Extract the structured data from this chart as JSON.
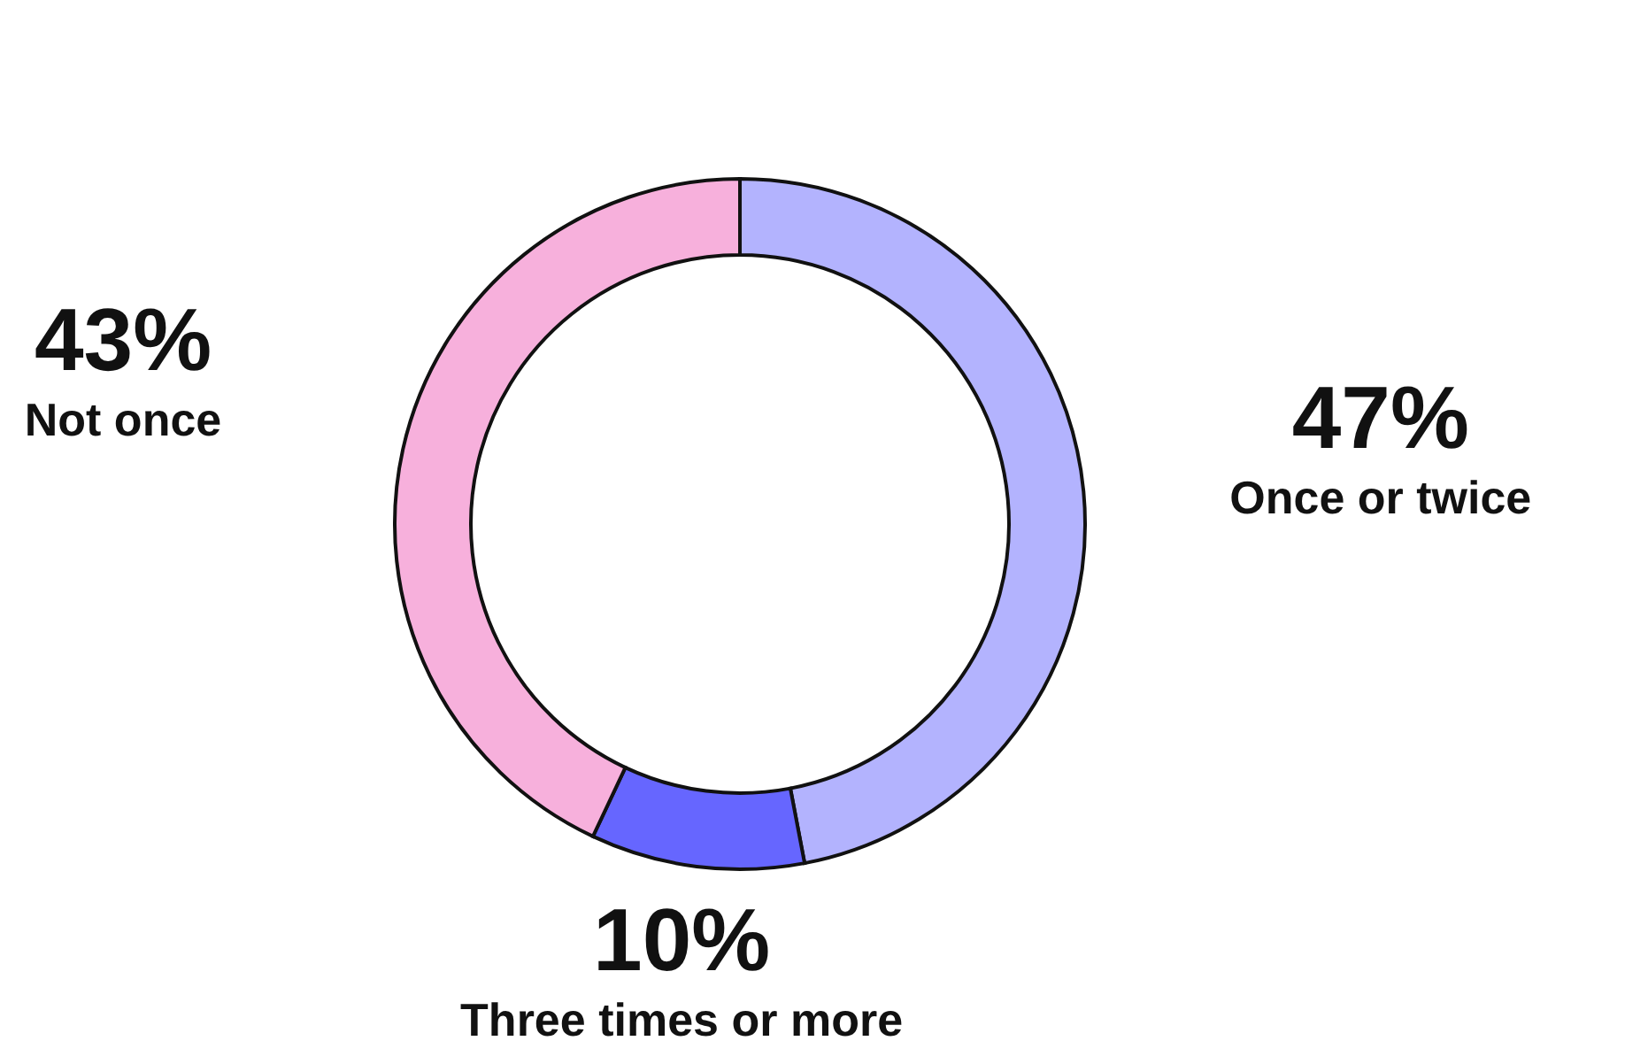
{
  "chart_data": {
    "type": "donut",
    "categories": [
      "Once or twice",
      "Three times or more",
      "Not once"
    ],
    "values": [
      47,
      10,
      43
    ],
    "value_labels": [
      "47%",
      "10%",
      "43%"
    ],
    "colors": [
      "#b3b3fe",
      "#6666ff",
      "#f7b0dc"
    ]
  }
}
